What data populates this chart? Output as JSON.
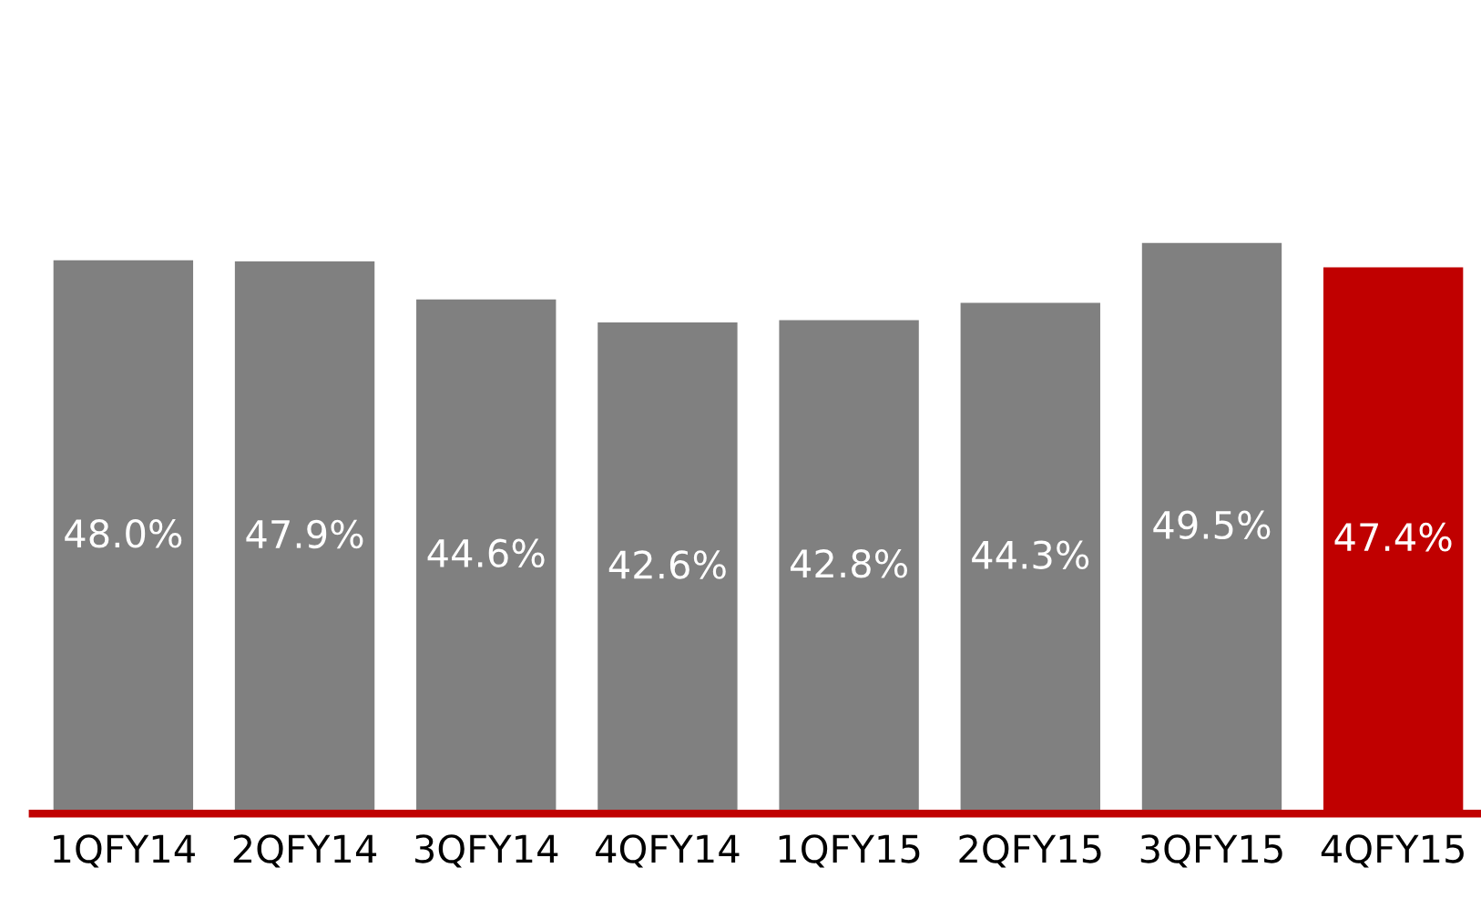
{
  "chart_data": {
    "type": "bar",
    "categories": [
      "1QFY14",
      "2QFY14",
      "3QFY14",
      "4QFY14",
      "1QFY15",
      "2QFY15",
      "3QFY15",
      "4QFY15"
    ],
    "values": [
      48.0,
      47.9,
      44.6,
      42.6,
      42.8,
      44.3,
      49.5,
      47.4
    ],
    "value_labels": [
      "48.0%",
      "47.9%",
      "44.6%",
      "42.6%",
      "42.8%",
      "44.3%",
      "49.5%",
      "47.4%"
    ],
    "colors": [
      "#808080",
      "#808080",
      "#808080",
      "#808080",
      "#808080",
      "#808080",
      "#808080",
      "#c00000"
    ],
    "tick_labels": "x",
    "grid": false,
    "legend": false
  }
}
